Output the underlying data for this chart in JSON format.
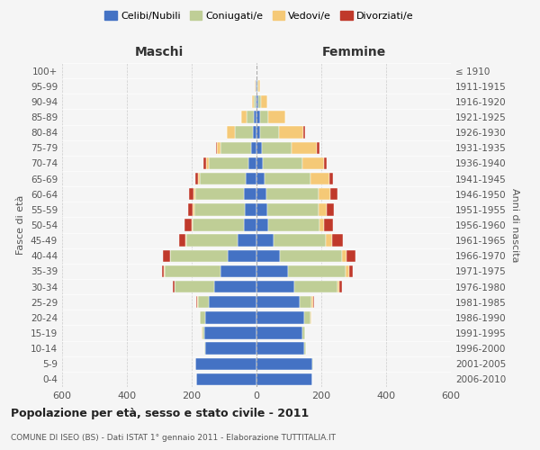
{
  "age_groups": [
    "0-4",
    "5-9",
    "10-14",
    "15-19",
    "20-24",
    "25-29",
    "30-34",
    "35-39",
    "40-44",
    "45-49",
    "50-54",
    "55-59",
    "60-64",
    "65-69",
    "70-74",
    "75-79",
    "80-84",
    "85-89",
    "90-94",
    "95-99",
    "100+"
  ],
  "birth_years": [
    "2006-2010",
    "2001-2005",
    "1996-2000",
    "1991-1995",
    "1986-1990",
    "1981-1985",
    "1976-1980",
    "1971-1975",
    "1966-1970",
    "1961-1965",
    "1956-1960",
    "1951-1955",
    "1946-1950",
    "1941-1945",
    "1936-1940",
    "1931-1935",
    "1926-1930",
    "1921-1925",
    "1916-1920",
    "1911-1915",
    "≤ 1910"
  ],
  "maschi": {
    "celibi": [
      185,
      188,
      158,
      162,
      158,
      148,
      130,
      112,
      88,
      58,
      40,
      35,
      38,
      32,
      25,
      18,
      12,
      8,
      4,
      2,
      1
    ],
    "coniugati": [
      0,
      1,
      4,
      6,
      16,
      32,
      122,
      172,
      178,
      158,
      158,
      158,
      152,
      142,
      122,
      92,
      55,
      22,
      5,
      2,
      0
    ],
    "vedovi": [
      0,
      0,
      0,
      2,
      2,
      2,
      2,
      2,
      2,
      3,
      3,
      3,
      4,
      6,
      8,
      12,
      24,
      18,
      5,
      2,
      0
    ],
    "divorziati": [
      0,
      0,
      0,
      0,
      0,
      4,
      5,
      5,
      20,
      20,
      20,
      14,
      15,
      10,
      8,
      3,
      0,
      0,
      0,
      0,
      0
    ]
  },
  "femmine": {
    "nubili": [
      172,
      173,
      148,
      143,
      148,
      133,
      118,
      98,
      72,
      52,
      36,
      33,
      30,
      26,
      20,
      16,
      12,
      10,
      5,
      2,
      0
    ],
    "coniugate": [
      0,
      1,
      4,
      6,
      20,
      36,
      132,
      178,
      192,
      162,
      158,
      158,
      162,
      142,
      122,
      92,
      58,
      25,
      8,
      4,
      0
    ],
    "vedove": [
      0,
      0,
      0,
      0,
      2,
      5,
      5,
      10,
      15,
      20,
      15,
      25,
      36,
      56,
      65,
      78,
      75,
      55,
      20,
      4,
      0
    ],
    "divorziate": [
      0,
      0,
      0,
      0,
      0,
      5,
      8,
      12,
      26,
      32,
      26,
      22,
      22,
      12,
      10,
      8,
      5,
      0,
      0,
      0,
      0
    ]
  },
  "colors": {
    "celibi": "#4472C4",
    "coniugati": "#BFCE96",
    "vedovi": "#F5C977",
    "divorziati": "#C0392B"
  },
  "xlim": 600,
  "title": "Popolazione per età, sesso e stato civile - 2011",
  "subtitle": "COMUNE DI ISEO (BS) - Dati ISTAT 1° gennaio 2011 - Elaborazione TUTTITALIA.IT",
  "ylabel_left": "Fasce di età",
  "ylabel_right": "Anni di nascita",
  "xlabel_maschi": "Maschi",
  "xlabel_femmine": "Femmine",
  "legend_labels": [
    "Celibi/Nubili",
    "Coniugati/e",
    "Vedovi/e",
    "Divorziati/e"
  ],
  "bg_color": "#f5f5f5",
  "bar_height": 0.78
}
